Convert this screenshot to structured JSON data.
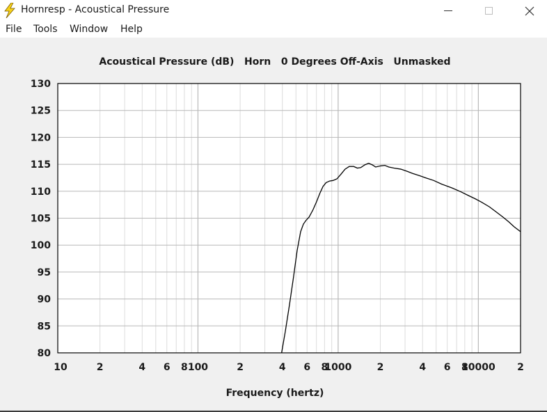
{
  "window": {
    "title": "Hornresp - Acoustical Pressure",
    "minimize_label": "",
    "maximize_label": "",
    "close_label": ""
  },
  "menu": {
    "items": [
      "File",
      "Tools",
      "Window",
      "Help"
    ]
  },
  "colors": {
    "background": "#f0f0f0",
    "plot_background": "#ffffff",
    "grid_major": "#b8b8b8",
    "grid_minor": "#dcdcdc",
    "curve": "#000000",
    "icon_yellow": "#f7d21a"
  },
  "chart_data": {
    "type": "line",
    "title": "Acoustical Pressure (dB)   Horn   0 Degrees Off-Axis   Unmasked",
    "xlabel": "Frequency (hertz)",
    "ylabel": "",
    "x_scale": "log",
    "xlim": [
      10,
      20000
    ],
    "ylim": [
      80,
      130
    ],
    "grid": true,
    "x_tick_labels": [
      {
        "value": 10,
        "label": "10"
      },
      {
        "value": 20,
        "label": "2"
      },
      {
        "value": 40,
        "label": "4"
      },
      {
        "value": 60,
        "label": "6"
      },
      {
        "value": 80,
        "label": "8"
      },
      {
        "value": 100,
        "label": "100"
      },
      {
        "value": 200,
        "label": "2"
      },
      {
        "value": 400,
        "label": "4"
      },
      {
        "value": 600,
        "label": "6"
      },
      {
        "value": 800,
        "label": "8"
      },
      {
        "value": 1000,
        "label": "1000"
      },
      {
        "value": 2000,
        "label": "2"
      },
      {
        "value": 4000,
        "label": "4"
      },
      {
        "value": 6000,
        "label": "6"
      },
      {
        "value": 8000,
        "label": "8"
      },
      {
        "value": 10000,
        "label": "10000"
      },
      {
        "value": 20000,
        "label": "2"
      }
    ],
    "y_ticks": [
      80,
      85,
      90,
      95,
      100,
      105,
      110,
      115,
      120,
      125,
      130
    ],
    "series": [
      {
        "points": [
          [
            395,
            80
          ],
          [
            420,
            84
          ],
          [
            450,
            89
          ],
          [
            480,
            94
          ],
          [
            510,
            99
          ],
          [
            540,
            102.5
          ],
          [
            565,
            103.9
          ],
          [
            590,
            104.6
          ],
          [
            620,
            105.2
          ],
          [
            660,
            106.5
          ],
          [
            700,
            108
          ],
          [
            740,
            109.6
          ],
          [
            780,
            110.9
          ],
          [
            820,
            111.6
          ],
          [
            870,
            111.9
          ],
          [
            920,
            112.0
          ],
          [
            980,
            112.3
          ],
          [
            1050,
            113.2
          ],
          [
            1120,
            114.1
          ],
          [
            1200,
            114.6
          ],
          [
            1290,
            114.6
          ],
          [
            1370,
            114.3
          ],
          [
            1450,
            114.4
          ],
          [
            1550,
            114.9
          ],
          [
            1650,
            115.2
          ],
          [
            1750,
            114.9
          ],
          [
            1850,
            114.5
          ],
          [
            2000,
            114.7
          ],
          [
            2150,
            114.8
          ],
          [
            2300,
            114.5
          ],
          [
            2500,
            114.3
          ],
          [
            2800,
            114.1
          ],
          [
            3100,
            113.7
          ],
          [
            3400,
            113.3
          ],
          [
            3800,
            112.9
          ],
          [
            4200,
            112.5
          ],
          [
            4800,
            112.0
          ],
          [
            5500,
            111.3
          ],
          [
            6500,
            110.6
          ],
          [
            7500,
            109.9
          ],
          [
            8500,
            109.2
          ],
          [
            9500,
            108.6
          ],
          [
            10500,
            108.0
          ],
          [
            12000,
            107.1
          ],
          [
            13500,
            106.1
          ],
          [
            15000,
            105.2
          ],
          [
            16500,
            104.3
          ],
          [
            18000,
            103.4
          ],
          [
            20000,
            102.5
          ]
        ]
      }
    ]
  }
}
